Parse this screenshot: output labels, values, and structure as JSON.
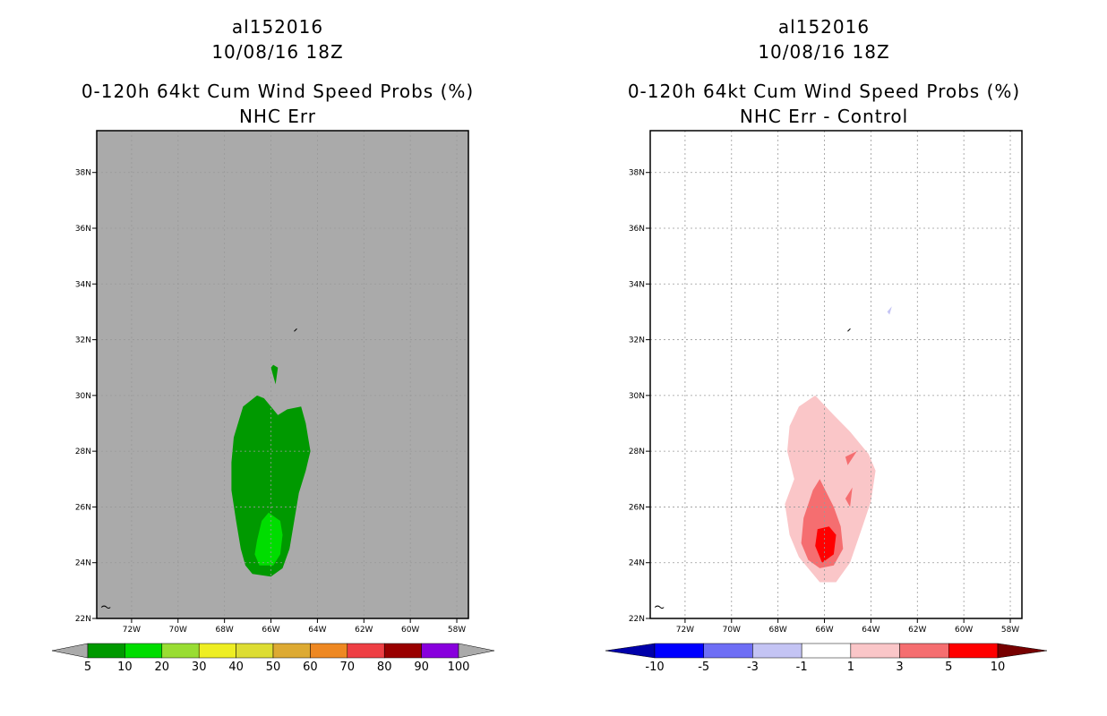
{
  "left": {
    "title_line1": "al152016",
    "title_line2": "10/08/16 18Z",
    "title_line3": "0-120h 64kt Cum Wind Speed Probs (%)",
    "title_line4": "NHC Err"
  },
  "right": {
    "title_line1": "al152016",
    "title_line2": "10/08/16 18Z",
    "title_line3": "0-120h 64kt Cum Wind Speed Probs (%)",
    "title_line4": "NHC Err - Control"
  },
  "chart_data": [
    {
      "type": "heatmap",
      "title": "0-120h 64kt Cum Wind Speed Probs (%) — NHC Err",
      "xlim": [
        -73.5,
        -57.5
      ],
      "ylim": [
        22,
        39.5
      ],
      "x_ticks": [
        "72W",
        "70W",
        "68W",
        "66W",
        "64W",
        "62W",
        "60W",
        "58W"
      ],
      "y_ticks": [
        "22N",
        "24N",
        "26N",
        "28N",
        "30N",
        "32N",
        "34N",
        "36N",
        "38N"
      ],
      "background": "#aaaaaa",
      "contours": [
        {
          "level": "5-10",
          "color": "#009900",
          "lonlat": [
            [
              -66.8,
              23.6
            ],
            [
              -66.0,
              23.5
            ],
            [
              -65.5,
              23.8
            ],
            [
              -65.2,
              24.5
            ],
            [
              -65.0,
              25.5
            ],
            [
              -64.8,
              26.5
            ],
            [
              -64.5,
              27.3
            ],
            [
              -64.3,
              28.0
            ],
            [
              -64.5,
              29.0
            ],
            [
              -64.7,
              29.6
            ],
            [
              -65.3,
              29.5
            ],
            [
              -65.7,
              29.3
            ],
            [
              -66.0,
              29.6
            ],
            [
              -66.3,
              29.9
            ],
            [
              -66.6,
              30.0
            ],
            [
              -67.2,
              29.6
            ],
            [
              -67.6,
              28.5
            ],
            [
              -67.7,
              27.6
            ],
            [
              -67.7,
              26.6
            ],
            [
              -67.5,
              25.5
            ],
            [
              -67.3,
              24.5
            ],
            [
              -67.1,
              23.9
            ]
          ]
        },
        {
          "level": "5-10b",
          "color": "#009900",
          "lonlat": [
            [
              -65.9,
              31.1
            ],
            [
              -65.7,
              31.0
            ],
            [
              -65.8,
              30.4
            ],
            [
              -66.0,
              31.0
            ]
          ]
        },
        {
          "level": "10-20",
          "color": "#00dd00",
          "lonlat": [
            [
              -66.5,
              23.9
            ],
            [
              -65.9,
              23.9
            ],
            [
              -65.6,
              24.3
            ],
            [
              -65.5,
              25.0
            ],
            [
              -65.6,
              25.5
            ],
            [
              -66.1,
              25.8
            ],
            [
              -66.4,
              25.5
            ],
            [
              -66.6,
              24.8
            ],
            [
              -66.7,
              24.3
            ]
          ]
        }
      ],
      "colorbar": {
        "levels": [
          "5",
          "10",
          "20",
          "30",
          "40",
          "50",
          "60",
          "70",
          "80",
          "90",
          "100"
        ],
        "colors": [
          "#009900",
          "#00dd00",
          "#99dd33",
          "#eeee22",
          "#dddd33",
          "#ddaa33",
          "#ee8822",
          "#ee3f44",
          "#990000",
          "#8800dd"
        ]
      }
    },
    {
      "type": "heatmap",
      "title": "0-120h 64kt Cum Wind Speed Probs (%) — NHC Err - Control",
      "xlim": [
        -73.5,
        -57.5
      ],
      "ylim": [
        22,
        39.5
      ],
      "x_ticks": [
        "72W",
        "70W",
        "68W",
        "66W",
        "64W",
        "62W",
        "60W",
        "58W"
      ],
      "y_ticks": [
        "22N",
        "24N",
        "26N",
        "28N",
        "30N",
        "32N",
        "34N",
        "36N",
        "38N"
      ],
      "background": "#ffffff",
      "contours": [
        {
          "level": "1 to 3",
          "color": "#fac6c8",
          "lonlat": [
            [
              -66.2,
              23.3
            ],
            [
              -65.5,
              23.3
            ],
            [
              -64.9,
              24.0
            ],
            [
              -64.4,
              25.2
            ],
            [
              -64.0,
              26.2
            ],
            [
              -63.8,
              27.3
            ],
            [
              -64.1,
              27.9
            ],
            [
              -64.5,
              28.3
            ],
            [
              -64.9,
              28.7
            ],
            [
              -65.6,
              29.3
            ],
            [
              -66.4,
              30.0
            ],
            [
              -67.1,
              29.6
            ],
            [
              -67.5,
              28.9
            ],
            [
              -67.6,
              28.0
            ],
            [
              -67.3,
              27.0
            ],
            [
              -67.7,
              26.1
            ],
            [
              -67.5,
              25.0
            ],
            [
              -67.1,
              24.2
            ],
            [
              -66.6,
              23.7
            ]
          ]
        },
        {
          "level": "3 to 5",
          "color": "#f56e70",
          "lonlat": [
            [
              -66.2,
              23.8
            ],
            [
              -65.6,
              23.9
            ],
            [
              -65.2,
              24.5
            ],
            [
              -65.3,
              25.3
            ],
            [
              -65.6,
              26.0
            ],
            [
              -65.9,
              26.5
            ],
            [
              -66.2,
              27.0
            ],
            [
              -66.5,
              26.6
            ],
            [
              -66.9,
              25.6
            ],
            [
              -67.0,
              24.7
            ],
            [
              -66.7,
              24.1
            ]
          ]
        },
        {
          "level": "3 to 5b",
          "color": "#f56e70",
          "lonlat": [
            [
              -65.0,
              27.5
            ],
            [
              -64.6,
              28.0
            ],
            [
              -65.1,
              27.8
            ]
          ]
        },
        {
          "level": "3 to 5c",
          "color": "#f56e70",
          "lonlat": [
            [
              -65.1,
              26.3
            ],
            [
              -64.8,
              26.7
            ],
            [
              -64.9,
              26.0
            ]
          ]
        },
        {
          "level": "5 to 10",
          "color": "#ff0000",
          "lonlat": [
            [
              -66.1,
              24.0
            ],
            [
              -65.6,
              24.3
            ],
            [
              -65.5,
              25.0
            ],
            [
              -65.8,
              25.3
            ],
            [
              -66.3,
              25.2
            ],
            [
              -66.4,
              24.6
            ]
          ]
        },
        {
          "level": "-3 to -1",
          "color": "#c4c4f4",
          "lonlat": [
            [
              -63.3,
              33.0
            ],
            [
              -63.1,
              33.2
            ],
            [
              -63.2,
              32.9
            ]
          ]
        }
      ],
      "colorbar": {
        "levels": [
          "-10",
          "-5",
          "-3",
          "-1",
          "1",
          "3",
          "5",
          "10"
        ],
        "colors": [
          "#0000aa",
          "#0000ff",
          "#6e6ef5",
          "#c4c4f4",
          "#ffffff",
          "#fac6c8",
          "#f56e70",
          "#ff0000",
          "#770000"
        ]
      }
    }
  ]
}
